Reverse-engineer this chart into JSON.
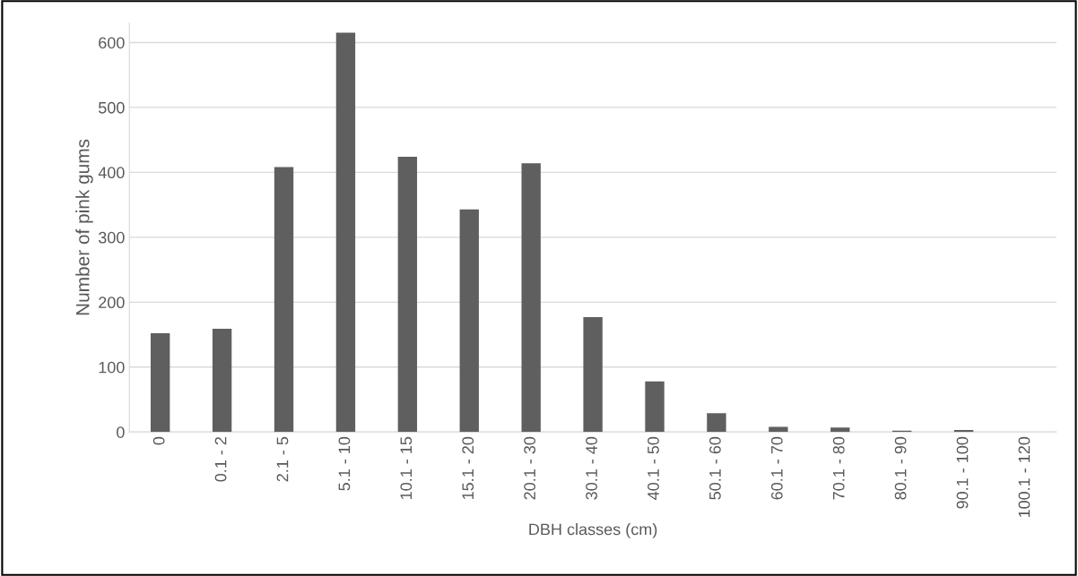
{
  "chart_data": {
    "type": "bar",
    "xlabel": "DBH classes (cm)",
    "ylabel": "Number of pink gums",
    "categories": [
      "0",
      "0.1 - 2",
      "2.1 - 5",
      "5.1 - 10",
      "10.1 - 15",
      "15.1 - 20",
      "20.1 - 30",
      "30.1 - 40",
      "40.1 - 50",
      "50.1 - 60",
      "60.1 - 70",
      "70.1 - 80",
      "80.1 - 90",
      "90.1 - 100",
      "100.1 - 120"
    ],
    "values": [
      152,
      159,
      408,
      615,
      424,
      343,
      414,
      177,
      78,
      29,
      8,
      7,
      2,
      3,
      0
    ],
    "color": "#5f5f5f",
    "ylim": [
      0,
      630
    ],
    "yticks": [
      0,
      100,
      200,
      300,
      400,
      500,
      600
    ],
    "grid": "y",
    "legend": false
  }
}
